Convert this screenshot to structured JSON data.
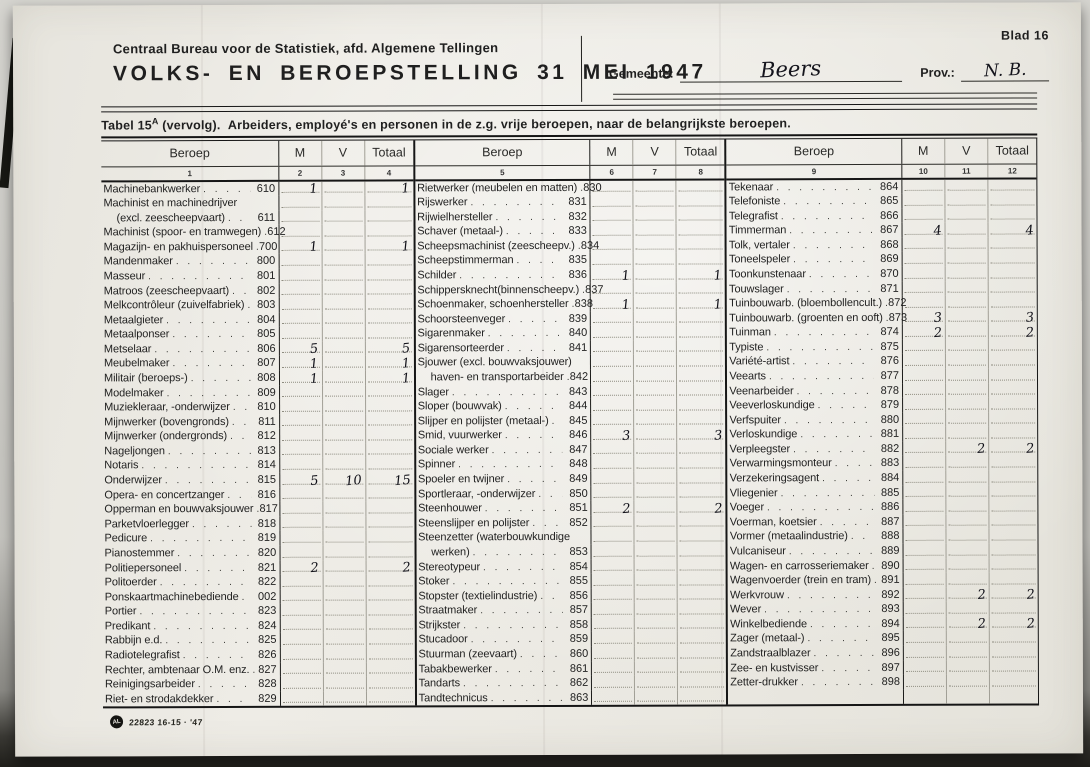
{
  "page": {
    "blad_label": "Blad 16",
    "org_line": "Centraal Bureau voor de Statistiek, afd. Algemene Tellingen",
    "title": "VOLKS- EN BEROEPSTELLING 31 MEI 1947",
    "gemeente_label": "Gemeente:",
    "gemeente_value": "Beers",
    "prov_label": "Prov.:",
    "prov_value": "N. B.",
    "caption": {
      "pre": "Tabel 15",
      "sup": "A",
      "post": " (vervolg).",
      "main": "Arbeiders, employé's en personen in de z.g. vrije beroepen, naar de belangrijkste beroepen."
    },
    "footer_logo": "AL",
    "footer_code": "22823 16-15 · '47"
  },
  "table": {
    "col_headers": [
      "Beroep",
      "M",
      "V",
      "Totaal"
    ],
    "col_numbers": [
      [
        "1",
        "2",
        "3",
        "4"
      ],
      [
        "5",
        "6",
        "7",
        "8"
      ],
      [
        "9",
        "10",
        "11",
        "12"
      ]
    ],
    "sections": [
      {
        "rows": [
          {
            "l": "Machinebankwerker",
            "c": "610",
            "m": "1",
            "t": "1"
          },
          {
            "l": "Machinist en machinedrijver",
            "c": ""
          },
          {
            "l": "(excl. zeescheepvaart)",
            "c": "611",
            "ind": true
          },
          {
            "l": "Machinist (spoor- en tramwegen)",
            "c": "612"
          },
          {
            "l": "Magazijn- en pakhuispersoneel",
            "c": "700",
            "m": "1",
            "t": "1"
          },
          {
            "l": "Mandenmaker",
            "c": "800"
          },
          {
            "l": "Masseur",
            "c": "801"
          },
          {
            "l": "Matroos (zeescheepvaart)",
            "c": "802"
          },
          {
            "l": "Melkcontrôleur (zuivelfabriek)",
            "c": "803"
          },
          {
            "l": "Metaalgieter",
            "c": "804"
          },
          {
            "l": "Metaalponser",
            "c": "805"
          },
          {
            "l": "Metselaar",
            "c": "806",
            "m": "5",
            "t": "5"
          },
          {
            "l": "Meubelmaker",
            "c": "807",
            "m": "1",
            "t": "1"
          },
          {
            "l": "Militair (beroeps-)",
            "c": "808",
            "m": "1",
            "t": "1"
          },
          {
            "l": "Modelmaker",
            "c": "809"
          },
          {
            "l": "Muziekleraar, -onderwijzer",
            "c": "810"
          },
          {
            "l": "Mijnwerker (bovengronds)",
            "c": "811"
          },
          {
            "l": "Mijnwerker (ondergronds)",
            "c": "812"
          },
          {
            "l": "Nageljongen",
            "c": "813"
          },
          {
            "l": "Notaris",
            "c": "814"
          },
          {
            "l": "Onderwijzer",
            "c": "815",
            "m": "5",
            "v": "10",
            "t": "15"
          },
          {
            "l": "Opera- en concertzanger",
            "c": "816"
          },
          {
            "l": "Opperman en bouwvaksjouwer",
            "c": "817"
          },
          {
            "l": "Parketvloerlegger",
            "c": "818"
          },
          {
            "l": "Pedicure",
            "c": "819"
          },
          {
            "l": "Pianostemmer",
            "c": "820"
          },
          {
            "l": "Politiepersoneel",
            "c": "821",
            "m": "2",
            "t": "2"
          },
          {
            "l": "Politoerder",
            "c": "822"
          },
          {
            "l": "Ponskaartmachinebediende",
            "c": "002"
          },
          {
            "l": "Portier",
            "c": "823"
          },
          {
            "l": "Predikant",
            "c": "824"
          },
          {
            "l": "Rabbijn e.d.",
            "c": "825"
          },
          {
            "l": "Radiotelegrafist",
            "c": "826"
          },
          {
            "l": "Rechter, ambtenaar O.M. enz.",
            "c": "827"
          },
          {
            "l": "Reinigingsarbeider",
            "c": "828"
          },
          {
            "l": "Riet- en strodakdekker",
            "c": "829"
          }
        ]
      },
      {
        "rows": [
          {
            "l": "Rietwerker (meubelen en matten)",
            "c": "830"
          },
          {
            "l": "Rijswerker",
            "c": "831"
          },
          {
            "l": "Rijwielhersteller",
            "c": "832"
          },
          {
            "l": "Schaver (metaal-)",
            "c": "833"
          },
          {
            "l": "Scheepsmachinist (zeescheepv.)",
            "c": "834"
          },
          {
            "l": "Scheepstimmerman",
            "c": "835"
          },
          {
            "l": "Schilder",
            "c": "836",
            "m": "1",
            "t": "1"
          },
          {
            "l": "Schippersknecht(binnenscheepv.)",
            "c": "837"
          },
          {
            "l": "Schoenmaker, schoenhersteller",
            "c": "838",
            "m": "1",
            "t": "1"
          },
          {
            "l": "Schoorsteenveger",
            "c": "839"
          },
          {
            "l": "Sigarenmaker",
            "c": "840"
          },
          {
            "l": "Sigarensorteerder",
            "c": "841"
          },
          {
            "l": "Sjouwer (excl. bouwvaksjouwer)",
            "c": ""
          },
          {
            "l": "haven- en transportarbeider",
            "c": "842",
            "ind": true
          },
          {
            "l": "Slager",
            "c": "843"
          },
          {
            "l": "Sloper (bouwvak)",
            "c": "844"
          },
          {
            "l": "Slijper en polijster (metaal-)",
            "c": "845"
          },
          {
            "l": "Smid, vuurwerker",
            "c": "846",
            "m": "3",
            "t": "3"
          },
          {
            "l": "Sociale werker",
            "c": "847"
          },
          {
            "l": "Spinner",
            "c": "848"
          },
          {
            "l": "Spoeler en twijner",
            "c": "849"
          },
          {
            "l": "Sportleraar, -onderwijzer",
            "c": "850"
          },
          {
            "l": "Steenhouwer",
            "c": "851",
            "m": "2",
            "t": "2"
          },
          {
            "l": "Steenslijper en polijster",
            "c": "852"
          },
          {
            "l": "Steenzetter (waterbouwkundige",
            "c": ""
          },
          {
            "l": "werken)",
            "c": "853",
            "ind": true
          },
          {
            "l": "Stereotypeur",
            "c": "854"
          },
          {
            "l": "Stoker",
            "c": "855"
          },
          {
            "l": "Stopster (textielindustrie)",
            "c": "856"
          },
          {
            "l": "Straatmaker",
            "c": "857"
          },
          {
            "l": "Strijkster",
            "c": "858"
          },
          {
            "l": "Stucadoor",
            "c": "859"
          },
          {
            "l": "Stuurman (zeevaart)",
            "c": "860"
          },
          {
            "l": "Tabakbewerker",
            "c": "861"
          },
          {
            "l": "Tandarts",
            "c": "862"
          },
          {
            "l": "Tandtechnicus",
            "c": "863"
          }
        ]
      },
      {
        "rows": [
          {
            "l": "Tekenaar",
            "c": "864"
          },
          {
            "l": "Telefoniste",
            "c": "865"
          },
          {
            "l": "Telegrafist",
            "c": "866"
          },
          {
            "l": "Timmerman",
            "c": "867",
            "m": "4",
            "t": "4"
          },
          {
            "l": "Tolk, vertaler",
            "c": "868"
          },
          {
            "l": "Toneelspeler",
            "c": "869"
          },
          {
            "l": "Toonkunstenaar",
            "c": "870"
          },
          {
            "l": "Touwslager",
            "c": "871"
          },
          {
            "l": "Tuinbouwarb. (bloembollencult.)",
            "c": "872"
          },
          {
            "l": "Tuinbouwarb. (groenten en ooft)",
            "c": "873",
            "m": "3",
            "t": "3"
          },
          {
            "l": "Tuinman",
            "c": "874",
            "m": "2",
            "t": "2"
          },
          {
            "l": "Typiste",
            "c": "875"
          },
          {
            "l": "Variété-artist",
            "c": "876"
          },
          {
            "l": "Veearts",
            "c": "877"
          },
          {
            "l": "Veenarbeider",
            "c": "878"
          },
          {
            "l": "Veeverloskundige",
            "c": "879"
          },
          {
            "l": "Verfspuiter",
            "c": "880"
          },
          {
            "l": "Verloskundige",
            "c": "881"
          },
          {
            "l": "Verpleegster",
            "c": "882",
            "v": "2",
            "t": "2"
          },
          {
            "l": "Verwarmingsmonteur",
            "c": "883"
          },
          {
            "l": "Verzekeringsagent",
            "c": "884"
          },
          {
            "l": "Vliegenier",
            "c": "885"
          },
          {
            "l": "Voeger",
            "c": "886"
          },
          {
            "l": "Voerman, koetsier",
            "c": "887"
          },
          {
            "l": "Vormer (metaalindustrie)",
            "c": "888"
          },
          {
            "l": "Vulcaniseur",
            "c": "889"
          },
          {
            "l": "Wagen- en carrosseriemaker",
            "c": "890"
          },
          {
            "l": "Wagenvoerder (trein en tram)",
            "c": "891"
          },
          {
            "l": "Werkvrouw",
            "c": "892",
            "v": "2",
            "t": "2"
          },
          {
            "l": "Wever",
            "c": "893"
          },
          {
            "l": "Winkelbediende",
            "c": "894",
            "v": "2",
            "t": "2"
          },
          {
            "l": "Zager (metaal-)",
            "c": "895"
          },
          {
            "l": "Zandstraalblazer",
            "c": "896"
          },
          {
            "l": "Zee- en kustvisser",
            "c": "897"
          },
          {
            "l": "Zetter-drukker",
            "c": "898"
          },
          {
            "l": "",
            "c": ""
          }
        ]
      }
    ]
  }
}
